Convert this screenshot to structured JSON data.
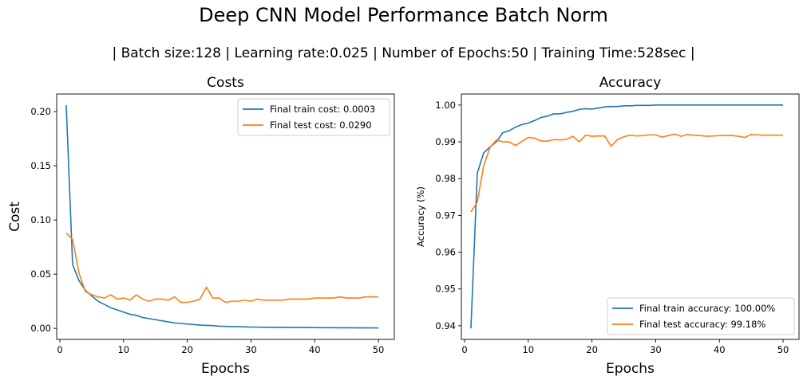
{
  "figure": {
    "title": "Deep CNN Model Performance Batch Norm",
    "subtitle": "| Batch size:128 | Learning rate:0.025 | Number of Epochs:50 | Training Time:528sec |"
  },
  "colors": {
    "train": "#1f77b4",
    "test": "#ff7f0e"
  },
  "chart_data": [
    {
      "type": "line",
      "title": "Costs",
      "xlabel": "Epochs",
      "ylabel": "Cost",
      "xlim": [
        -0.5,
        52.5
      ],
      "ylim": [
        -0.0102,
        0.2163
      ],
      "xticks": [
        0,
        10,
        20,
        30,
        40,
        50
      ],
      "xtick_labels": [
        "0",
        "10",
        "20",
        "30",
        "40",
        "50"
      ],
      "yticks": [
        0.0,
        0.05,
        0.1,
        0.15,
        0.2
      ],
      "ytick_labels": [
        "0.00",
        "0.05",
        "0.10",
        "0.15",
        "0.20"
      ],
      "legend_position": "top-right",
      "grid": false,
      "x": [
        1,
        2,
        3,
        4,
        5,
        6,
        7,
        8,
        9,
        10,
        11,
        12,
        13,
        14,
        15,
        16,
        17,
        18,
        19,
        20,
        21,
        22,
        23,
        24,
        25,
        26,
        27,
        28,
        29,
        30,
        31,
        32,
        33,
        34,
        35,
        36,
        37,
        38,
        39,
        40,
        41,
        42,
        43,
        44,
        45,
        46,
        47,
        48,
        49,
        50
      ],
      "series": [
        {
          "name": "Final train cost: 0.0003",
          "color_key": "train",
          "values": [
            0.206,
            0.059,
            0.044,
            0.035,
            0.03,
            0.025,
            0.022,
            0.019,
            0.017,
            0.015,
            0.013,
            0.012,
            0.01,
            0.009,
            0.008,
            0.007,
            0.006,
            0.005,
            0.0045,
            0.004,
            0.0035,
            0.003,
            0.0027,
            0.0025,
            0.002,
            0.0018,
            0.0016,
            0.0015,
            0.0013,
            0.0012,
            0.0011,
            0.001,
            0.001,
            0.0009,
            0.0009,
            0.0008,
            0.0008,
            0.0008,
            0.0007,
            0.0007,
            0.0006,
            0.0006,
            0.0006,
            0.0005,
            0.0005,
            0.0005,
            0.0004,
            0.0004,
            0.0004,
            0.0003
          ]
        },
        {
          "name": "Final test cost: 0.0290",
          "color_key": "test",
          "values": [
            0.088,
            0.082,
            0.051,
            0.034,
            0.031,
            0.029,
            0.028,
            0.031,
            0.027,
            0.028,
            0.026,
            0.031,
            0.027,
            0.025,
            0.027,
            0.027,
            0.026,
            0.029,
            0.024,
            0.024,
            0.025,
            0.027,
            0.038,
            0.028,
            0.028,
            0.024,
            0.025,
            0.025,
            0.026,
            0.025,
            0.027,
            0.026,
            0.026,
            0.026,
            0.026,
            0.027,
            0.027,
            0.027,
            0.027,
            0.028,
            0.028,
            0.028,
            0.028,
            0.029,
            0.028,
            0.028,
            0.028,
            0.029,
            0.029,
            0.029
          ]
        }
      ]
    },
    {
      "type": "line",
      "title": "Accuracy",
      "xlabel": "Epochs",
      "ylabel": "Accuracy (%)",
      "xlim": [
        -0.5,
        52.5
      ],
      "ylim": [
        0.9363,
        1.003
      ],
      "xticks": [
        0,
        10,
        20,
        30,
        40,
        50
      ],
      "xtick_labels": [
        "0",
        "10",
        "20",
        "30",
        "40",
        "50"
      ],
      "yticks": [
        0.94,
        0.95,
        0.96,
        0.97,
        0.98,
        0.99,
        1.0
      ],
      "ytick_labels": [
        "0.94",
        "0.95",
        "0.96",
        "0.97",
        "0.98",
        "0.99",
        "1.00"
      ],
      "legend_position": "bottom-right",
      "grid": false,
      "x": [
        1,
        2,
        3,
        4,
        5,
        6,
        7,
        8,
        9,
        10,
        11,
        12,
        13,
        14,
        15,
        16,
        17,
        18,
        19,
        20,
        21,
        22,
        23,
        24,
        25,
        26,
        27,
        28,
        29,
        30,
        31,
        32,
        33,
        34,
        35,
        36,
        37,
        38,
        39,
        40,
        41,
        42,
        43,
        44,
        45,
        46,
        47,
        48,
        49,
        50
      ],
      "series": [
        {
          "name": "Final train accuracy: 100.00%",
          "color_key": "train",
          "values": [
            0.9393,
            0.9815,
            0.987,
            0.9886,
            0.99,
            0.9925,
            0.993,
            0.994,
            0.9947,
            0.9951,
            0.9958,
            0.9966,
            0.997,
            0.9976,
            0.9976,
            0.998,
            0.9983,
            0.9988,
            0.999,
            0.9989,
            0.9992,
            0.9995,
            0.9996,
            0.9996,
            0.9998,
            0.9998,
            0.9999,
            0.9999,
            0.9999,
            1.0,
            1.0,
            1.0,
            1.0,
            1.0,
            1.0,
            1.0,
            1.0,
            1.0,
            1.0,
            1.0,
            1.0,
            1.0,
            1.0,
            1.0,
            1.0,
            1.0,
            1.0,
            1.0,
            1.0,
            1.0
          ]
        },
        {
          "name": "Final test accuracy: 99.18%",
          "color_key": "test",
          "values": [
            0.9709,
            0.9736,
            0.9835,
            0.9885,
            0.9905,
            0.99,
            0.99,
            0.989,
            0.9901,
            0.9912,
            0.991,
            0.9902,
            0.9902,
            0.9906,
            0.9905,
            0.9907,
            0.9915,
            0.99,
            0.9918,
            0.9915,
            0.9916,
            0.9916,
            0.9888,
            0.9906,
            0.9914,
            0.9918,
            0.9916,
            0.9917,
            0.9919,
            0.9919,
            0.9913,
            0.9917,
            0.9921,
            0.9915,
            0.992,
            0.9918,
            0.9917,
            0.9915,
            0.9916,
            0.9917,
            0.9917,
            0.9917,
            0.9915,
            0.9912,
            0.992,
            0.9919,
            0.9918,
            0.9918,
            0.9918,
            0.9918
          ]
        }
      ]
    }
  ]
}
